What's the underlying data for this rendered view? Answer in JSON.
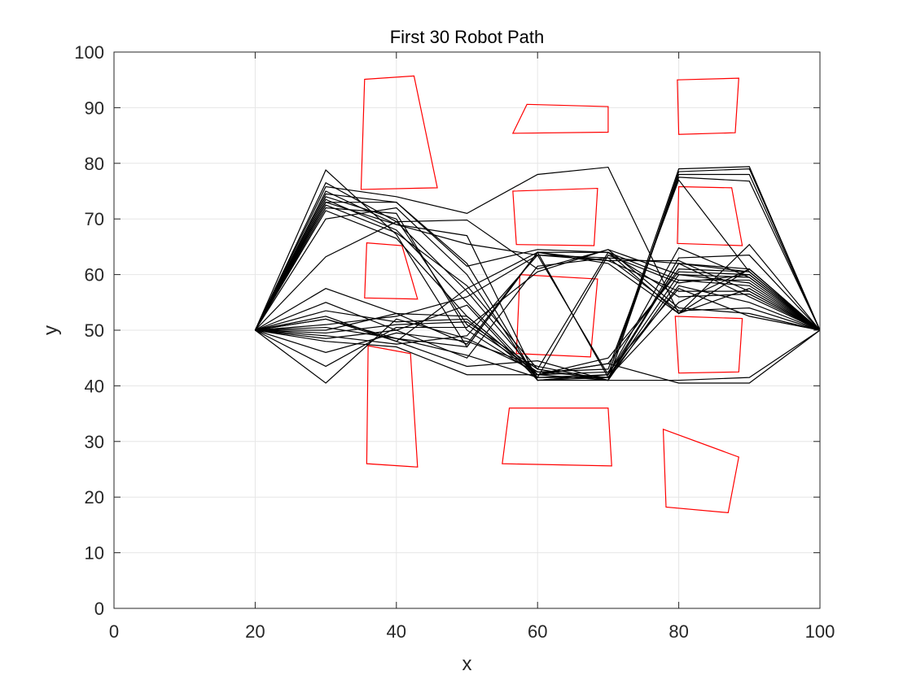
{
  "chart_data": {
    "type": "line",
    "title": "First 30 Robot Path",
    "xlabel": "x",
    "ylabel": "y",
    "xlim": [
      0,
      100
    ],
    "ylim": [
      0,
      100
    ],
    "xticks": [
      0,
      20,
      40,
      60,
      80,
      100
    ],
    "yticks": [
      0,
      10,
      20,
      30,
      40,
      50,
      60,
      70,
      80,
      90,
      100
    ],
    "grid": true,
    "colors": {
      "path": "#000000",
      "obstacle": "#ff0000"
    },
    "obstacles": [
      [
        [
          35.5,
          95.1
        ],
        [
          42.5,
          95.7
        ],
        [
          45.8,
          75.6
        ],
        [
          35.0,
          75.3
        ]
      ],
      [
        [
          58.5,
          90.6
        ],
        [
          70.0,
          90.2
        ],
        [
          70.0,
          85.6
        ],
        [
          56.5,
          85.4
        ]
      ],
      [
        [
          79.8,
          95.0
        ],
        [
          88.5,
          95.3
        ],
        [
          88.0,
          85.5
        ],
        [
          80.0,
          85.2
        ]
      ],
      [
        [
          56.5,
          75.0
        ],
        [
          68.5,
          75.5
        ],
        [
          68.0,
          65.2
        ],
        [
          57.0,
          65.4
        ]
      ],
      [
        [
          80.0,
          75.8
        ],
        [
          87.5,
          75.6
        ],
        [
          89.0,
          65.2
        ],
        [
          79.8,
          65.6
        ]
      ],
      [
        [
          35.8,
          65.7
        ],
        [
          40.8,
          65.2
        ],
        [
          43.0,
          55.6
        ],
        [
          35.5,
          55.8
        ]
      ],
      [
        [
          57.5,
          60.0
        ],
        [
          68.5,
          59.2
        ],
        [
          67.5,
          45.2
        ],
        [
          57.0,
          45.8
        ]
      ],
      [
        [
          79.5,
          52.5
        ],
        [
          89.0,
          52.1
        ],
        [
          88.5,
          42.5
        ],
        [
          80.0,
          42.3
        ]
      ],
      [
        [
          36.0,
          47.2
        ],
        [
          42.0,
          45.8
        ],
        [
          43.0,
          25.4
        ],
        [
          35.8,
          26.0
        ]
      ],
      [
        [
          56.0,
          36.0
        ],
        [
          70.0,
          36.0
        ],
        [
          70.5,
          25.6
        ],
        [
          55.0,
          26.0
        ]
      ],
      [
        [
          77.8,
          32.2
        ],
        [
          88.5,
          27.2
        ],
        [
          87.0,
          17.2
        ],
        [
          78.2,
          18.2
        ]
      ]
    ],
    "x": [
      20,
      30,
      40,
      50,
      60,
      70,
      80,
      90,
      100
    ],
    "series": [
      {
        "y": [
          50,
          78.8,
          67.2,
          47.0,
          64.0,
          64.0,
          53.0,
          65.4,
          50
        ]
      },
      {
        "y": [
          50,
          75.8,
          74.0,
          71.0,
          78.0,
          79.3,
          53.0,
          61.0,
          50
        ]
      },
      {
        "y": [
          50,
          75.0,
          69.0,
          67.0,
          41.0,
          42.0,
          79.0,
          79.4,
          50
        ]
      },
      {
        "y": [
          50,
          73.0,
          73.0,
          62.0,
          41.0,
          41.0,
          78.5,
          79.0,
          50
        ]
      },
      {
        "y": [
          50,
          72.0,
          71.0,
          50.0,
          42.0,
          41.0,
          78.0,
          78.0,
          50
        ]
      },
      {
        "y": [
          50,
          73.5,
          68.0,
          55.0,
          41.5,
          42.0,
          77.5,
          76.8,
          50
        ]
      },
      {
        "y": [
          50,
          74.0,
          70.0,
          51.0,
          42.5,
          43.0,
          77.0,
          60.5,
          50
        ]
      },
      {
        "y": [
          50,
          72.5,
          67.5,
          58.0,
          43.0,
          41.0,
          63.0,
          63.5,
          50
        ]
      },
      {
        "y": [
          50,
          70.0,
          72.0,
          60.0,
          41.0,
          41.5,
          62.0,
          61.0,
          50
        ]
      },
      {
        "y": [
          50,
          76.5,
          69.5,
          57.0,
          42.0,
          44.0,
          61.0,
          60.5,
          50
        ]
      },
      {
        "y": [
          50,
          71.5,
          66.5,
          52.5,
          42.0,
          45.0,
          60.5,
          60.0,
          50
        ]
      },
      {
        "y": [
          50,
          63.2,
          69.5,
          69.8,
          61.0,
          64.5,
          60.0,
          59.5,
          50
        ]
      },
      {
        "y": [
          50,
          74.5,
          73.0,
          61.5,
          64.5,
          64.0,
          59.0,
          59.0,
          50
        ]
      },
      {
        "y": [
          50,
          73.0,
          69.0,
          65.5,
          63.5,
          62.5,
          62.5,
          57.0,
          50
        ]
      },
      {
        "y": [
          50,
          57.5,
          53.0,
          47.5,
          64.0,
          62.0,
          53.0,
          57.5,
          50
        ]
      },
      {
        "y": [
          50,
          55.0,
          50.0,
          54.5,
          41.0,
          42.0,
          62.0,
          60.5,
          50
        ]
      },
      {
        "y": [
          50,
          53.5,
          51.5,
          52.0,
          41.5,
          63.5,
          58.5,
          60.0,
          50
        ]
      },
      {
        "y": [
          50,
          52.0,
          48.5,
          45.5,
          41.5,
          41.5,
          60.0,
          58.5,
          50
        ]
      },
      {
        "y": [
          50,
          52.5,
          48.0,
          43.5,
          44.5,
          41.0,
          59.0,
          58.0,
          50
        ]
      },
      {
        "y": [
          50,
          50.5,
          48.5,
          47.0,
          64.0,
          41.5,
          58.0,
          55.0,
          50
        ]
      },
      {
        "y": [
          50,
          50.0,
          53.0,
          52.5,
          42.0,
          42.5,
          57.5,
          52.5,
          50
        ]
      },
      {
        "y": [
          50,
          49.5,
          51.0,
          51.5,
          43.0,
          64.0,
          56.0,
          56.5,
          50
        ]
      },
      {
        "y": [
          50,
          49.0,
          47.5,
          49.0,
          63.5,
          63.0,
          53.5,
          54.0,
          50
        ]
      },
      {
        "y": [
          50,
          48.5,
          50.0,
          45.0,
          61.5,
          63.0,
          62.0,
          56.0,
          50
        ]
      },
      {
        "y": [
          50,
          48.0,
          47.0,
          42.0,
          42.0,
          44.0,
          40.5,
          40.5,
          50
        ]
      },
      {
        "y": [
          50,
          46.0,
          49.5,
          48.0,
          43.5,
          41.0,
          41.0,
          41.5,
          50
        ]
      },
      {
        "y": [
          50,
          43.5,
          50.5,
          50.5,
          60.5,
          64.5,
          54.0,
          53.0,
          50
        ]
      },
      {
        "y": [
          50,
          40.5,
          52.0,
          48.5,
          42.5,
          41.5,
          55.0,
          61.0,
          50
        ]
      },
      {
        "y": [
          50,
          51.0,
          52.5,
          56.0,
          63.5,
          42.0,
          64.8,
          59.5,
          50
        ]
      },
      {
        "y": [
          50,
          52.0,
          48.0,
          57.5,
          64.0,
          62.5,
          57.0,
          57.0,
          50
        ]
      }
    ]
  }
}
